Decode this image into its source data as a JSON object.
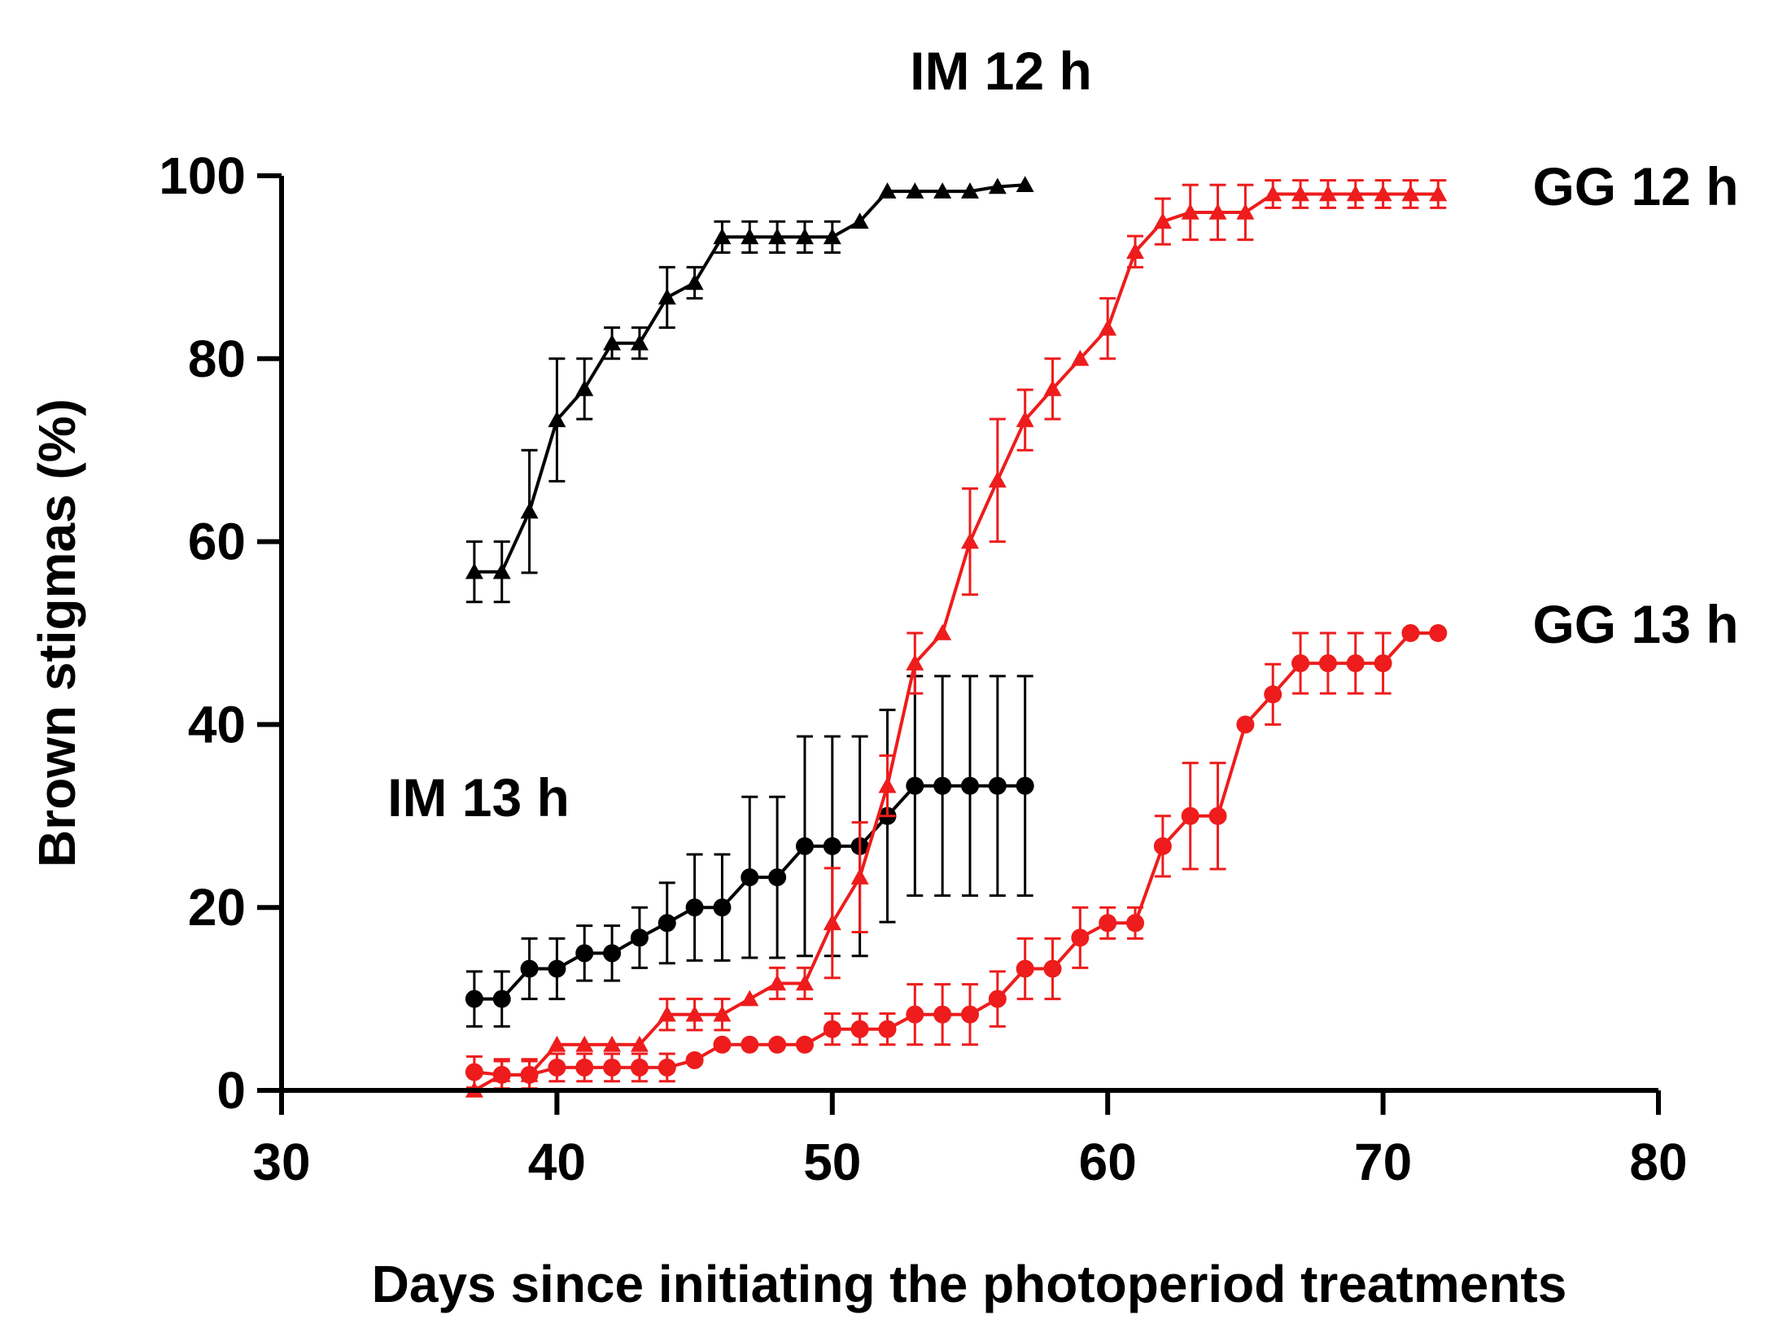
{
  "chart_data": {
    "type": "line",
    "xlabel": "Days since initiating the photoperiod treatments",
    "ylabel": "Brown stigmas (%)",
    "xlim": [
      30,
      80
    ],
    "ylim": [
      0,
      100
    ],
    "xticks": [
      30,
      40,
      50,
      60,
      70,
      80
    ],
    "yticks": [
      0,
      20,
      40,
      60,
      80,
      100
    ],
    "grid": false,
    "series": [
      {
        "name": "IM 12 h",
        "color": "#000000",
        "marker": "triangle",
        "x": [
          37,
          38,
          39,
          40,
          41,
          42,
          43,
          44,
          45,
          46,
          47,
          48,
          49,
          50,
          51,
          52,
          53,
          54,
          55,
          56,
          57
        ],
        "y": [
          56.7,
          56.7,
          63.3,
          73.3,
          76.7,
          81.7,
          81.7,
          86.7,
          88.3,
          93.3,
          93.3,
          93.3,
          93.3,
          93.3,
          95,
          98.3,
          98.3,
          98.3,
          98.3,
          98.8,
          99
        ],
        "err": [
          3.3,
          3.3,
          6.7,
          6.7,
          3.3,
          1.7,
          1.7,
          3.3,
          1.7,
          1.7,
          1.7,
          1.7,
          1.7,
          1.7,
          0,
          0,
          0,
          0,
          0,
          0,
          0
        ]
      },
      {
        "name": "IM 13 h",
        "color": "#000000",
        "marker": "circle",
        "x": [
          37,
          38,
          39,
          40,
          41,
          42,
          43,
          44,
          45,
          46,
          47,
          48,
          49,
          50,
          51,
          52,
          53,
          54,
          55,
          56,
          57
        ],
        "y": [
          10,
          10,
          13.3,
          13.3,
          15,
          15,
          16.7,
          18.3,
          20,
          20,
          23.3,
          23.3,
          26.7,
          26.7,
          26.7,
          30,
          33.3,
          33.3,
          33.3,
          33.3,
          33.3
        ],
        "err": [
          3,
          3,
          3.3,
          3.3,
          3,
          3,
          3.3,
          4.4,
          5.8,
          5.8,
          8.8,
          8.8,
          12,
          12,
          12,
          11.6,
          12,
          12,
          12,
          12,
          12
        ]
      },
      {
        "name": "GG 12 h",
        "color": "#ee1c1c",
        "marker": "triangle",
        "x": [
          37,
          38,
          39,
          40,
          41,
          42,
          43,
          44,
          45,
          46,
          47,
          48,
          49,
          50,
          51,
          52,
          53,
          54,
          55,
          56,
          57,
          58,
          59,
          60,
          61,
          62,
          63,
          64,
          65,
          66,
          67,
          68,
          69,
          70,
          71,
          72
        ],
        "y": [
          0,
          1.7,
          1.7,
          5,
          5,
          5,
          5,
          8.3,
          8.3,
          8.3,
          10,
          11.7,
          11.7,
          18.3,
          23.3,
          33.3,
          46.7,
          50,
          60,
          66.7,
          73.3,
          76.7,
          80,
          83.3,
          91.7,
          95,
          96,
          96,
          96,
          98,
          98,
          98,
          98,
          98,
          98,
          98
        ],
        "err": [
          0,
          1.7,
          1.7,
          0,
          0,
          0,
          0,
          1.7,
          1.7,
          1.7,
          0,
          1.7,
          1.7,
          6,
          6,
          3.3,
          3.3,
          0,
          5.8,
          6.7,
          3.3,
          3.3,
          0,
          3.3,
          1.7,
          2.5,
          3,
          3,
          3,
          1.5,
          1.5,
          1.5,
          1.5,
          1.5,
          1.5,
          1.5
        ]
      },
      {
        "name": "GG 13 h",
        "color": "#ee1c1c",
        "marker": "circle",
        "x": [
          37,
          38,
          39,
          40,
          41,
          42,
          43,
          44,
          45,
          46,
          47,
          48,
          49,
          50,
          51,
          52,
          53,
          54,
          55,
          56,
          57,
          58,
          59,
          60,
          61,
          62,
          63,
          64,
          65,
          66,
          67,
          68,
          69,
          70,
          71,
          72
        ],
        "y": [
          2,
          1.7,
          1.7,
          2.5,
          2.5,
          2.5,
          2.5,
          2.5,
          3.3,
          5,
          5,
          5,
          5,
          6.7,
          6.7,
          6.7,
          8.3,
          8.3,
          8.3,
          10,
          13.3,
          13.3,
          16.7,
          18.3,
          18.3,
          26.7,
          30,
          30,
          40,
          43.3,
          46.7,
          46.7,
          46.7,
          46.7,
          50,
          50
        ],
        "err": [
          1.7,
          1.5,
          1.5,
          1.5,
          1.5,
          1.5,
          1.5,
          1.5,
          0,
          0,
          0,
          0,
          0,
          1.7,
          1.7,
          1.7,
          3.3,
          3.3,
          3.3,
          3,
          3.3,
          3.3,
          3.3,
          1.7,
          1.7,
          3.3,
          5.8,
          5.8,
          0,
          3.3,
          3.3,
          3.3,
          3.3,
          3.3,
          0,
          0
        ]
      }
    ],
    "annotations": [
      {
        "text": "IM 12 h",
        "series": "IM 12 h"
      },
      {
        "text": "IM 13 h",
        "series": "IM 13 h"
      },
      {
        "text": "GG 12 h",
        "series": "GG 12 h"
      },
      {
        "text": "GG 13 h",
        "series": "GG 13 h"
      }
    ]
  }
}
